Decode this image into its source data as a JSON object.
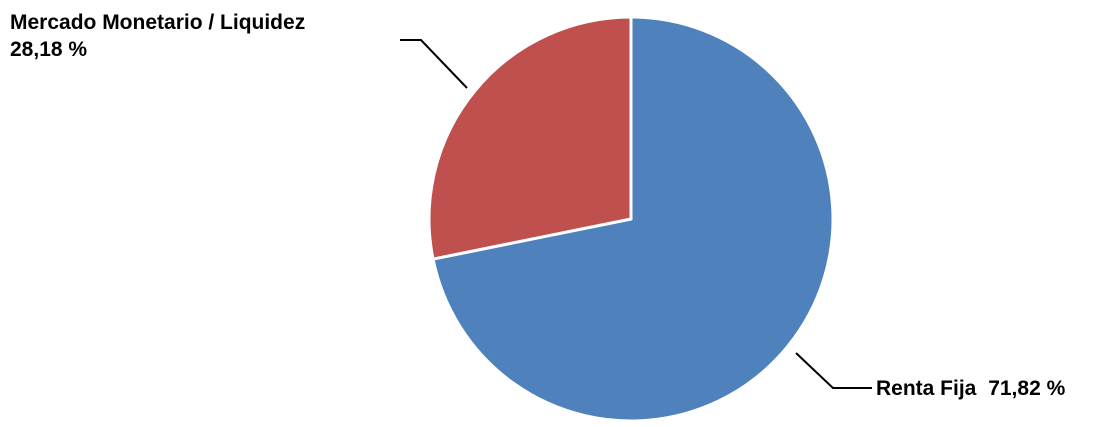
{
  "chart_data": {
    "type": "pie",
    "title": "",
    "slices": [
      {
        "label": "Renta Fija",
        "value": 71.82,
        "value_text": "71,82 %",
        "color": "#4f81bd"
      },
      {
        "label": "Mercado Monetario / Liquidez",
        "value": 28.18,
        "value_text": "28,18 %",
        "color": "#c0504d"
      }
    ],
    "start_angle": "12 o'clock",
    "direction": "clockwise",
    "legend": "none",
    "data_labels": "outside with leader lines"
  }
}
